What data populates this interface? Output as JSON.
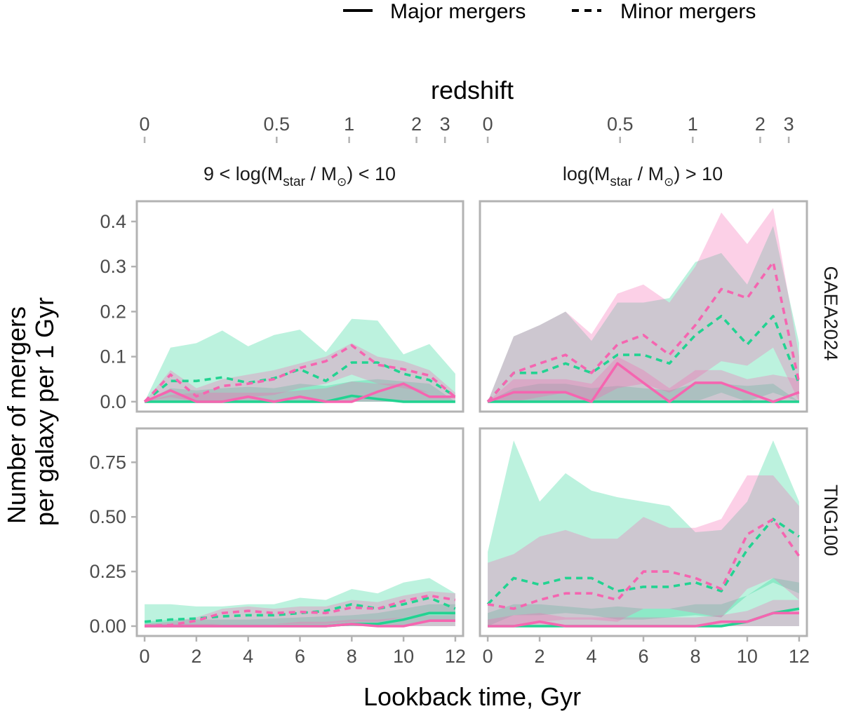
{
  "chart_data": {
    "type": "line",
    "x_axis_title": "Lookback time, Gyr",
    "y_axis_title": [
      "Number of mergers",
      "per galaxy per 1 Gyr"
    ],
    "secondary_x_axis": {
      "title": "redshift",
      "ticks": [
        {
          "label": "0",
          "lookback": 0
        },
        {
          "label": "0.5",
          "lookback": 5.1
        },
        {
          "label": "1",
          "lookback": 7.9
        },
        {
          "label": "2",
          "lookback": 10.5
        },
        {
          "label": "3",
          "lookback": 11.6
        }
      ]
    },
    "x_ticks": [
      0,
      2,
      4,
      6,
      8,
      10,
      12
    ],
    "x_tick_labels": [
      "0",
      "2",
      "4",
      "6",
      "8",
      "10",
      "12"
    ],
    "xlim": [
      -0.3,
      12.3
    ],
    "legend": {
      "placement": "top",
      "items": [
        {
          "label": "Major mergers",
          "linetype": "solid"
        },
        {
          "label": "Minor mergers",
          "linetype": "dashed"
        }
      ]
    },
    "colors": {
      "model_a": "#22d391",
      "model_b": "#f565b0"
    },
    "columns": [
      {
        "id": "low",
        "strip": {
          "pre": "9 < log(M",
          "sub": "star",
          "mid": " / M",
          "sun_sub": "⊙",
          "post": ") < 10"
        }
      },
      {
        "id": "high",
        "strip": {
          "pre": "log(M",
          "sub": "star",
          "mid": " / M",
          "sun_sub": "⊙",
          "post": ") > 10"
        }
      }
    ],
    "rows": [
      {
        "id": "gaea",
        "strip": "GAEA2024",
        "ylim": [
          -0.022,
          0.445
        ],
        "y_ticks": [
          0,
          0.1,
          0.2,
          0.3,
          0.4
        ],
        "y_tick_labels": [
          "0.0",
          "0.1",
          "0.2",
          "0.3",
          "0.4"
        ]
      },
      {
        "id": "tng",
        "strip": "TNG100",
        "ylim": [
          -0.045,
          0.905
        ],
        "y_ticks": [
          0,
          0.25,
          0.5,
          0.75
        ],
        "y_tick_labels": [
          "0.00",
          "0.25",
          "0.50",
          "0.75"
        ]
      }
    ],
    "x": [
      0,
      1,
      2,
      3,
      4,
      5,
      6,
      7,
      8,
      9,
      10,
      11,
      12
    ],
    "panels": [
      {
        "row": "gaea",
        "col": "low",
        "series": [
          {
            "name": "green major",
            "color": "model_a",
            "linetype": "solid",
            "values": [
              0,
              0,
              0,
              0,
              0,
              0,
              0,
              0,
              0.013,
              0.006,
              0,
              0,
              0
            ],
            "band_low": [
              0,
              0,
              0,
              0,
              0,
              0,
              0,
              0,
              0,
              0,
              0,
              0,
              0
            ],
            "band_high": [
              0,
              0.03,
              0.025,
              0.03,
              0.033,
              0.03,
              0.04,
              0.035,
              0.045,
              0.05,
              0.045,
              0.04,
              0
            ]
          },
          {
            "name": "green minor",
            "color": "model_a",
            "linetype": "dashed",
            "values": [
              0,
              0.046,
              0.046,
              0.054,
              0.042,
              0.052,
              0.072,
              0.046,
              0.087,
              0.087,
              0.062,
              0.048,
              0.012
            ],
            "band_low": [
              0,
              0,
              0,
              0,
              0,
              0,
              0,
              0,
              0,
              0,
              0,
              0,
              0
            ],
            "band_high": [
              0,
              0.12,
              0.13,
              0.158,
              0.123,
              0.148,
              0.16,
              0.11,
              0.184,
              0.18,
              0.105,
              0.128,
              0.062
            ]
          },
          {
            "name": "pink major",
            "color": "model_b",
            "linetype": "solid",
            "values": [
              0,
              0.025,
              0,
              0,
              0.011,
              0,
              0.011,
              0,
              0,
              0.022,
              0.04,
              0.011,
              0.011
            ],
            "band_low": [
              0,
              0,
              0,
              0,
              0,
              0,
              0,
              0,
              0,
              0,
              0,
              0,
              0
            ],
            "band_high": [
              0,
              0.015,
              0.02,
              0.02,
              0.02,
              0.02,
              0.025,
              0.03,
              0.045,
              0.04,
              0.04,
              0.02,
              0
            ]
          },
          {
            "name": "pink minor",
            "color": "model_b",
            "linetype": "dashed",
            "values": [
              0,
              0.06,
              0.012,
              0.035,
              0.04,
              0.05,
              0.075,
              0.09,
              0.125,
              0.082,
              0.072,
              0.058,
              0.01
            ],
            "band_low": [
              0,
              0.01,
              0,
              0,
              0.01,
              0.015,
              0.03,
              0.04,
              0.06,
              0.04,
              0.03,
              0.02,
              0
            ],
            "band_high": [
              0,
              0.07,
              0.03,
              0.05,
              0.06,
              0.07,
              0.085,
              0.1,
              0.13,
              0.1,
              0.09,
              0.07,
              0.02
            ]
          }
        ]
      },
      {
        "row": "gaea",
        "col": "high",
        "series": [
          {
            "name": "green major",
            "color": "model_a",
            "linetype": "solid",
            "values": [
              0,
              0,
              0,
              0,
              0,
              0,
              0,
              0,
              0,
              0,
              0,
              0,
              0
            ],
            "band_low": [
              0,
              0,
              0,
              0,
              0,
              0,
              0,
              0,
              0,
              0,
              0,
              0,
              0
            ],
            "band_high": [
              0,
              0.03,
              0.04,
              0.04,
              0.03,
              0.035,
              0.03,
              0.025,
              0.04,
              0.04,
              0.035,
              0.04,
              0
            ]
          },
          {
            "name": "green minor",
            "color": "model_a",
            "linetype": "dashed",
            "values": [
              0,
              0.064,
              0.064,
              0.085,
              0.064,
              0.104,
              0.104,
              0.085,
              0.148,
              0.19,
              0.127,
              0.19,
              0.04
            ],
            "band_low": [
              0,
              0,
              0,
              0,
              0,
              0,
              0,
              0,
              0,
              0.02,
              0,
              0.02,
              0
            ],
            "band_high": [
              0,
              0.145,
              0.17,
              0.2,
              0.135,
              0.22,
              0.22,
              0.23,
              0.31,
              0.33,
              0.26,
              0.39,
              0.13
            ]
          },
          {
            "name": "pink major",
            "color": "model_b",
            "linetype": "solid",
            "values": [
              0,
              0.021,
              0.021,
              0.021,
              0,
              0.085,
              0.042,
              0,
              0.042,
              0.042,
              0.021,
              0,
              0.021
            ],
            "band_low": [
              0,
              0,
              0,
              0,
              0,
              0,
              0,
              0,
              0,
              0,
              0,
              0,
              0
            ],
            "band_high": [
              0,
              0.05,
              0.05,
              0.05,
              0.04,
              0.1,
              0.07,
              0.03,
              0.07,
              0.07,
              0.05,
              0.06,
              0.05
            ]
          },
          {
            "name": "pink minor",
            "color": "model_b",
            "linetype": "dashed",
            "values": [
              0,
              0.064,
              0.085,
              0.104,
              0.064,
              0.127,
              0.148,
              0.104,
              0.17,
              0.25,
              0.23,
              0.31,
              0.042
            ],
            "band_low": [
              0,
              0,
              0.01,
              0.02,
              0,
              0.03,
              0.04,
              0.02,
              0.05,
              0.09,
              0.08,
              0.12,
              0
            ],
            "band_high": [
              0,
              0.145,
              0.17,
              0.2,
              0.15,
              0.24,
              0.26,
              0.22,
              0.3,
              0.42,
              0.35,
              0.43,
              0.1
            ]
          }
        ]
      },
      {
        "row": "tng",
        "col": "low",
        "series": [
          {
            "name": "green major",
            "color": "model_a",
            "linetype": "solid",
            "values": [
              0,
              0,
              0,
              0,
              0,
              0,
              0,
              0,
              0.01,
              0.01,
              0.03,
              0.06,
              0.06
            ],
            "band_low": [
              0,
              0,
              0,
              0,
              0,
              0,
              0,
              0,
              0,
              0,
              0,
              0.02,
              0.02
            ],
            "band_high": [
              0.02,
              0.03,
              0.03,
              0.03,
              0.03,
              0.035,
              0.04,
              0.045,
              0.05,
              0.06,
              0.08,
              0.1,
              0.1
            ]
          },
          {
            "name": "green minor",
            "color": "model_a",
            "linetype": "dashed",
            "values": [
              0.02,
              0.03,
              0.035,
              0.045,
              0.05,
              0.05,
              0.06,
              0.07,
              0.1,
              0.08,
              0.1,
              0.13,
              0.08
            ],
            "band_low": [
              0,
              0,
              0,
              0,
              0,
              0,
              0,
              0,
              0,
              0,
              0,
              0,
              0
            ],
            "band_high": [
              0.1,
              0.1,
              0.09,
              0.09,
              0.1,
              0.1,
              0.13,
              0.12,
              0.17,
              0.15,
              0.2,
              0.22,
              0.15
            ]
          },
          {
            "name": "pink major",
            "color": "model_b",
            "linetype": "solid",
            "values": [
              0,
              0,
              0,
              0,
              0,
              0,
              0,
              0,
              0.01,
              0,
              0,
              0.025,
              0.025
            ],
            "band_low": [
              0,
              0,
              0,
              0,
              0,
              0,
              0,
              0,
              0,
              0,
              0,
              0,
              0
            ],
            "band_high": [
              0.01,
              0.01,
              0.01,
              0.01,
              0.01,
              0.01,
              0.02,
              0.02,
              0.03,
              0.03,
              0.04,
              0.05,
              0.05
            ]
          },
          {
            "name": "pink minor",
            "color": "model_b",
            "linetype": "dashed",
            "values": [
              0,
              0.005,
              0.025,
              0.06,
              0.07,
              0.06,
              0.065,
              0.06,
              0.085,
              0.08,
              0.115,
              0.14,
              0.12
            ],
            "band_low": [
              0,
              0,
              0,
              0.01,
              0.01,
              0.01,
              0.01,
              0.01,
              0.02,
              0.02,
              0.04,
              0.06,
              0.05
            ],
            "band_high": [
              0.01,
              0.02,
              0.04,
              0.08,
              0.09,
              0.08,
              0.09,
              0.09,
              0.12,
              0.11,
              0.14,
              0.16,
              0.15
            ]
          }
        ]
      },
      {
        "row": "tng",
        "col": "high",
        "series": [
          {
            "name": "green major",
            "color": "model_a",
            "linetype": "solid",
            "values": [
              0,
              0,
              0,
              0,
              0,
              0,
              0,
              0,
              0,
              0,
              0.02,
              0.06,
              0.08
            ],
            "band_low": [
              0,
              0,
              0,
              0,
              0,
              0,
              0,
              0,
              0,
              0,
              0,
              0,
              0
            ],
            "band_high": [
              0.06,
              0.1,
              0.1,
              0.09,
              0.08,
              0.09,
              0.08,
              0.08,
              0.1,
              0.1,
              0.14,
              0.22,
              0.2
            ]
          },
          {
            "name": "green minor",
            "color": "model_a",
            "linetype": "dashed",
            "values": [
              0.1,
              0.22,
              0.19,
              0.22,
              0.22,
              0.16,
              0.18,
              0.18,
              0.2,
              0.16,
              0.35,
              0.49,
              0.41
            ],
            "band_low": [
              0,
              0.05,
              0.05,
              0.06,
              0.05,
              0.03,
              0.03,
              0.04,
              0.05,
              0.04,
              0.14,
              0.2,
              0.15
            ],
            "band_high": [
              0.34,
              0.85,
              0.57,
              0.7,
              0.62,
              0.59,
              0.57,
              0.55,
              0.43,
              0.44,
              0.57,
              0.85,
              0.57
            ]
          },
          {
            "name": "pink major",
            "color": "model_b",
            "linetype": "solid",
            "values": [
              0,
              0,
              0.02,
              0,
              0,
              0,
              0,
              0,
              0,
              0.02,
              0.02,
              0.06,
              0.06
            ],
            "band_low": [
              0,
              0,
              0,
              0,
              0,
              0,
              0,
              0,
              0,
              0,
              0,
              0,
              0
            ],
            "band_high": [
              0.03,
              0.05,
              0.06,
              0.04,
              0.04,
              0.04,
              0.04,
              0.04,
              0.04,
              0.05,
              0.07,
              0.12,
              0.12
            ]
          },
          {
            "name": "pink minor",
            "color": "model_b",
            "linetype": "dashed",
            "values": [
              0.1,
              0.08,
              0.12,
              0.15,
              0.15,
              0.12,
              0.25,
              0.25,
              0.22,
              0.17,
              0.42,
              0.49,
              0.32
            ],
            "band_low": [
              0,
              0,
              0.02,
              0.03,
              0.03,
              0.02,
              0.08,
              0.08,
              0.06,
              0.04,
              0.17,
              0.22,
              0.12
            ],
            "band_high": [
              0.29,
              0.33,
              0.41,
              0.44,
              0.4,
              0.4,
              0.5,
              0.45,
              0.45,
              0.49,
              0.69,
              0.69,
              0.55
            ]
          }
        ]
      }
    ]
  }
}
